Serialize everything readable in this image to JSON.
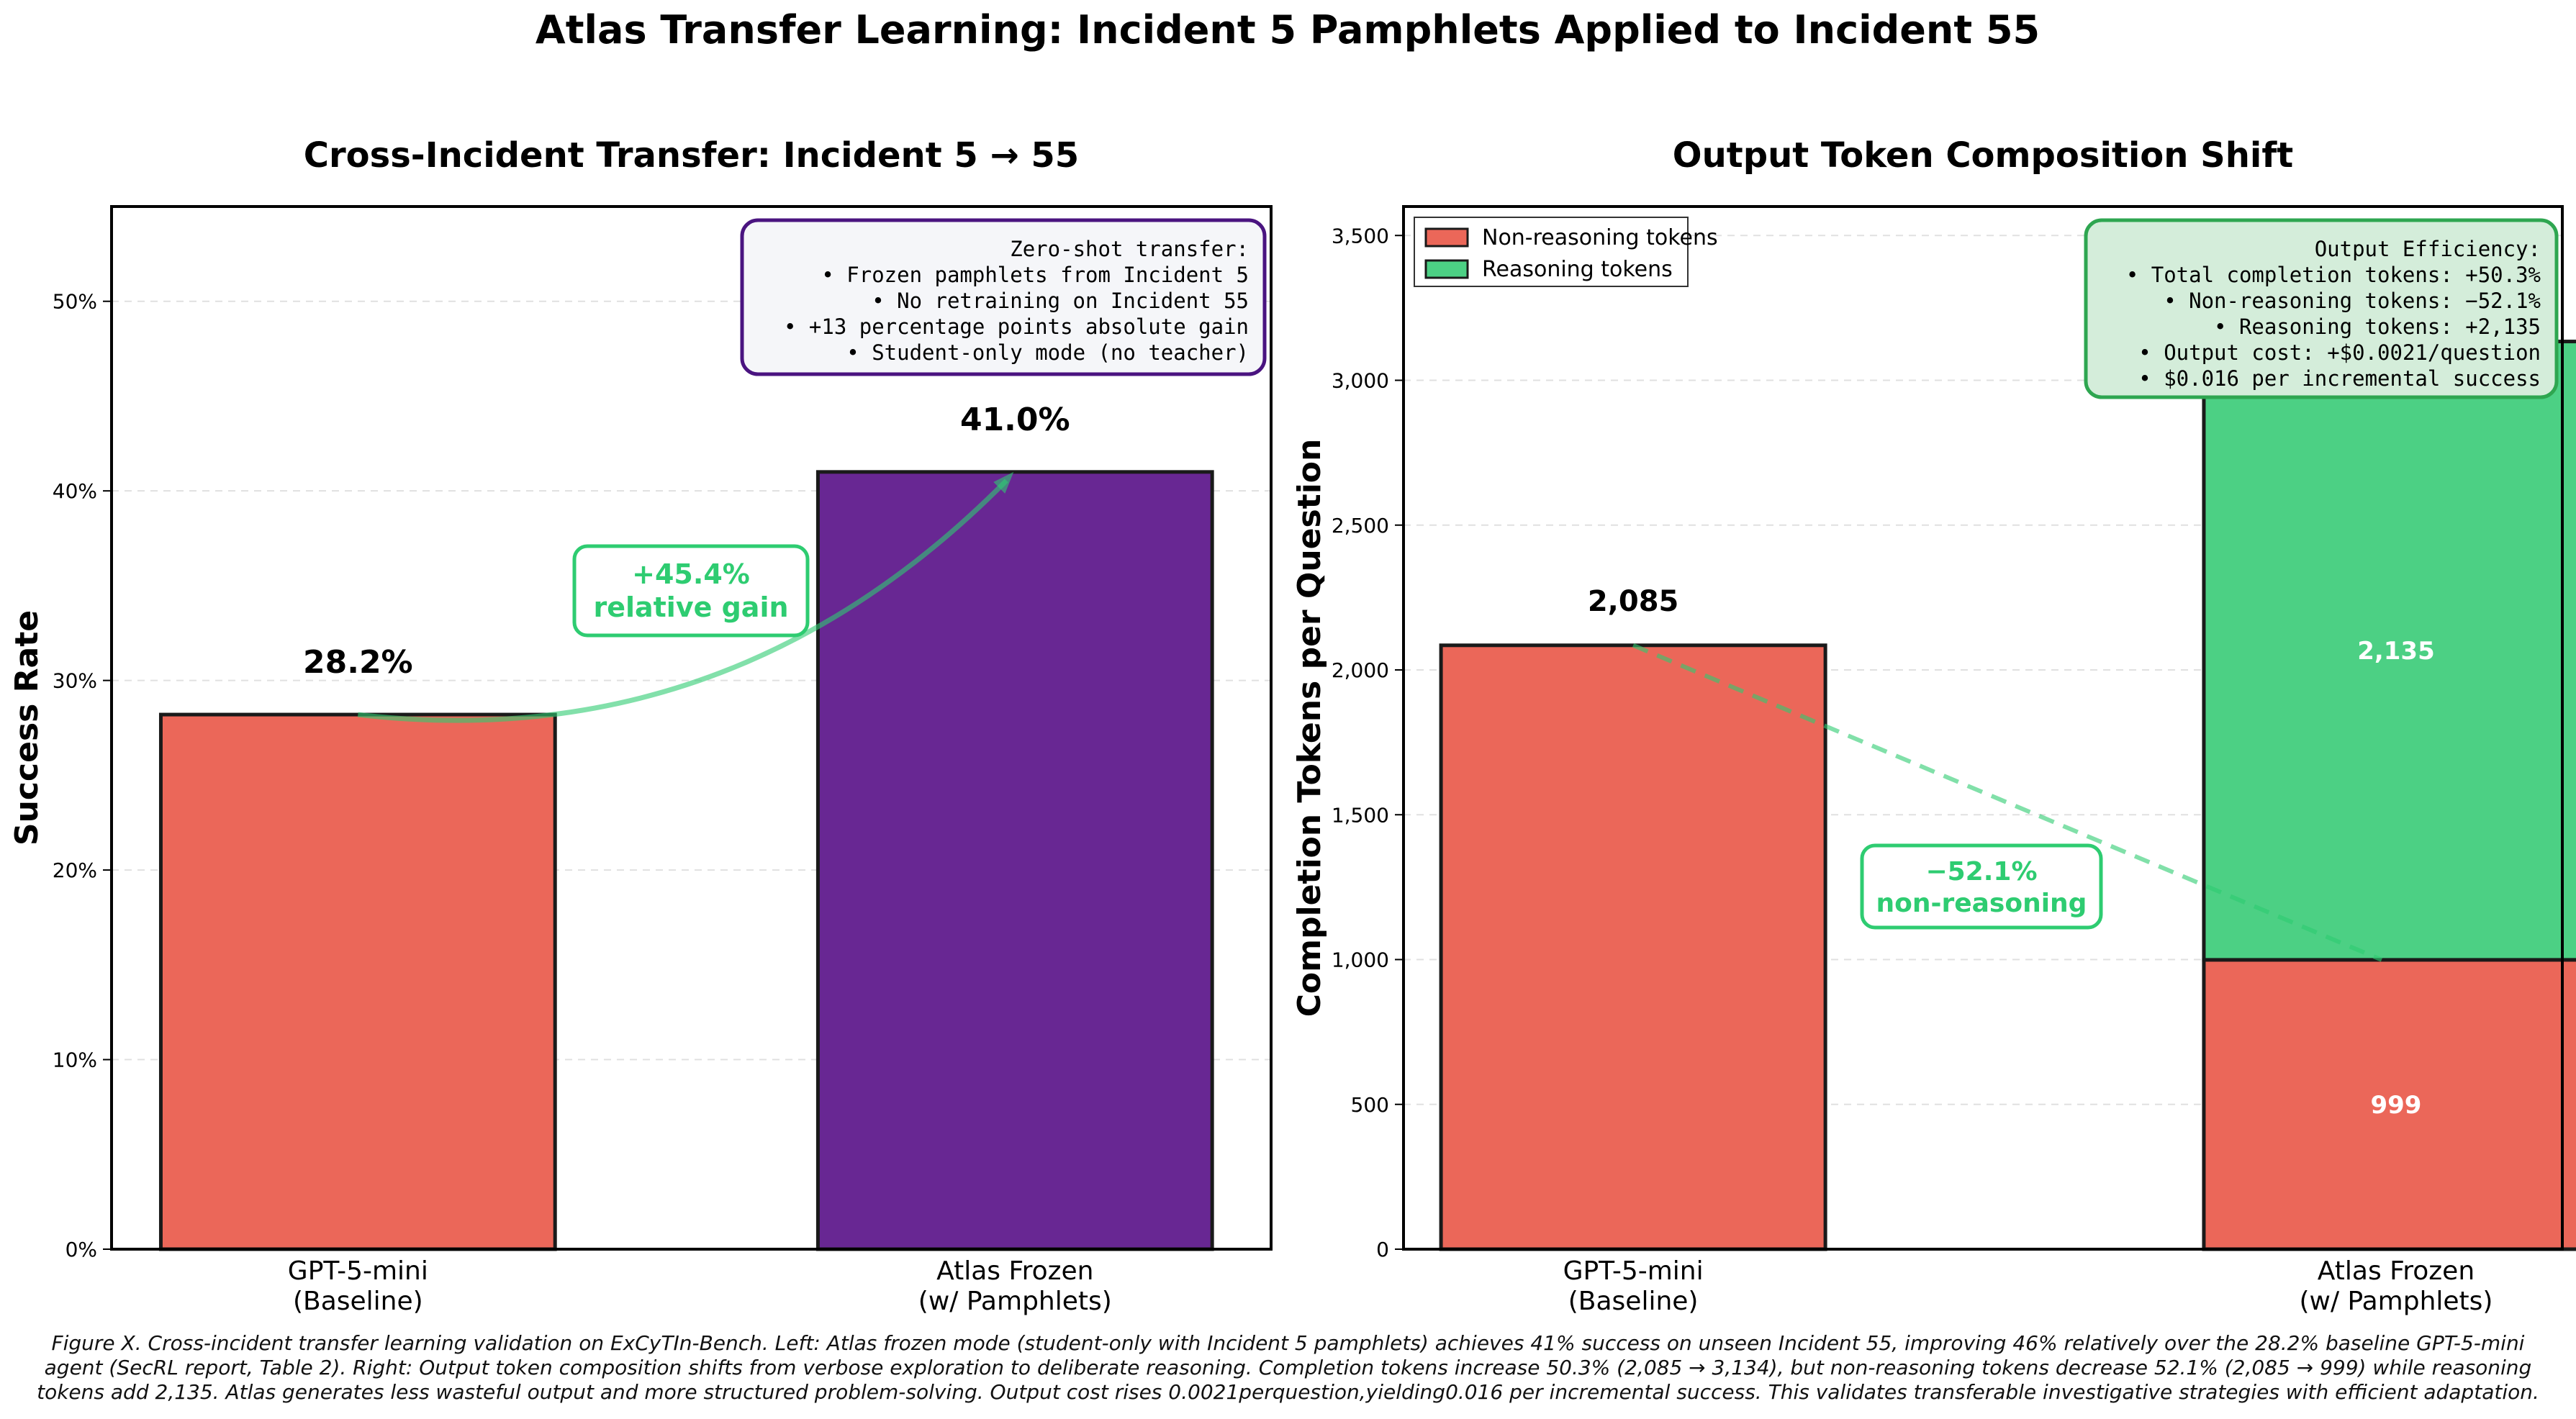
{
  "figure": {
    "suptitle": "Atlas Transfer Learning: Incident 5 Pamphlets Applied to Incident 55",
    "caption": "Figure X. Cross-incident transfer learning validation on ExCyTIn-Bench. Left: Atlas frozen mode (student-only with Incident 5 pamphlets) achieves 41% success on unseen Incident 55, improving 46% relatively over the 28.2% baseline GPT-5-mini agent (SecRL report, Table 2). Right: Output token composition shifts from verbose exploration to deliberate reasoning. Completion tokens increase 50.3% (2,085 → 3,134), but non-reasoning tokens decrease 52.1% (2,085 → 999) while reasoning tokens add 2,135. Atlas generates less wasteful output and more structured problem-solving. Output cost rises 0.0021perquestion,yielding0.016 per incremental success. This validates transferable investigative strategies with efficient adaptation."
  },
  "colors": {
    "baseline": "#eb6759",
    "atlas": "#682793",
    "non_reasoning": "#eb6759",
    "reasoning": "#4cd084",
    "accent_green": "#2ecc71",
    "purple_box_border": "#4a1480",
    "purple_box_fill": "#f5f6f9",
    "green_box_fill": "#d4edda",
    "green_box_border": "#2ea650"
  },
  "chart_data": [
    {
      "type": "bar",
      "title": "Cross-Incident Transfer: Incident 5 → 55",
      "xlabel": "",
      "ylabel": "Success Rate",
      "categories": [
        "GPT-5-mini\n(Baseline)",
        "Atlas Frozen\n(w/ Pamphlets)"
      ],
      "values": [
        28.2,
        41.0
      ],
      "value_labels": [
        "28.2%",
        "41.0%"
      ],
      "ylim": [
        0,
        55
      ],
      "yticks": [
        0,
        10,
        20,
        30,
        40,
        50
      ],
      "ytick_labels": [
        "0%",
        "10%",
        "20%",
        "30%",
        "40%",
        "50%"
      ],
      "grid": "y, dashed",
      "annotation": {
        "text": [
          "+45.4%",
          "relative gain"
        ],
        "arrow": "curved from GPT-5-mini bar top to Atlas Frozen bar top"
      },
      "info_box": {
        "lines": [
          "Zero-shot transfer:",
          "• Frozen pamphlets from Incident 5",
          "• No retraining on Incident 55",
          "• +13 percentage points absolute gain",
          "• Student-only mode (no teacher)"
        ]
      }
    },
    {
      "type": "bar",
      "stacked": true,
      "title": "Output Token Composition Shift",
      "xlabel": "",
      "ylabel": "Completion Tokens per Question",
      "categories": [
        "GPT-5-mini\n(Baseline)",
        "Atlas Frozen\n(w/ Pamphlets)"
      ],
      "series": [
        {
          "name": "Non-reasoning tokens",
          "values": [
            2085,
            999
          ]
        },
        {
          "name": "Reasoning tokens",
          "values": [
            0,
            2135
          ]
        }
      ],
      "value_labels": {
        "baseline_total": "2,085",
        "atlas_non_reasoning": "999",
        "atlas_reasoning": "2,135"
      },
      "ylim": [
        0,
        3600
      ],
      "yticks": [
        0,
        500,
        1000,
        1500,
        2000,
        2500,
        3000,
        3500
      ],
      "ytick_labels": [
        "0",
        "500",
        "1,000",
        "1,500",
        "2,000",
        "2,500",
        "3,000",
        "3,500"
      ],
      "grid": "y, dashed",
      "legend": "top-left",
      "annotation": {
        "text": [
          "−52.1%",
          "non-reasoning"
        ],
        "arrow": "dashed from baseline bar top to Atlas non-reasoning top"
      },
      "info_box": {
        "lines": [
          "Output Efficiency:",
          "• Total completion tokens: +50.3%",
          "• Non-reasoning tokens: −52.1%",
          "• Reasoning tokens: +2,135",
          "• Output cost: +$0.0021/question",
          "• $0.016 per incremental success"
        ]
      }
    }
  ]
}
